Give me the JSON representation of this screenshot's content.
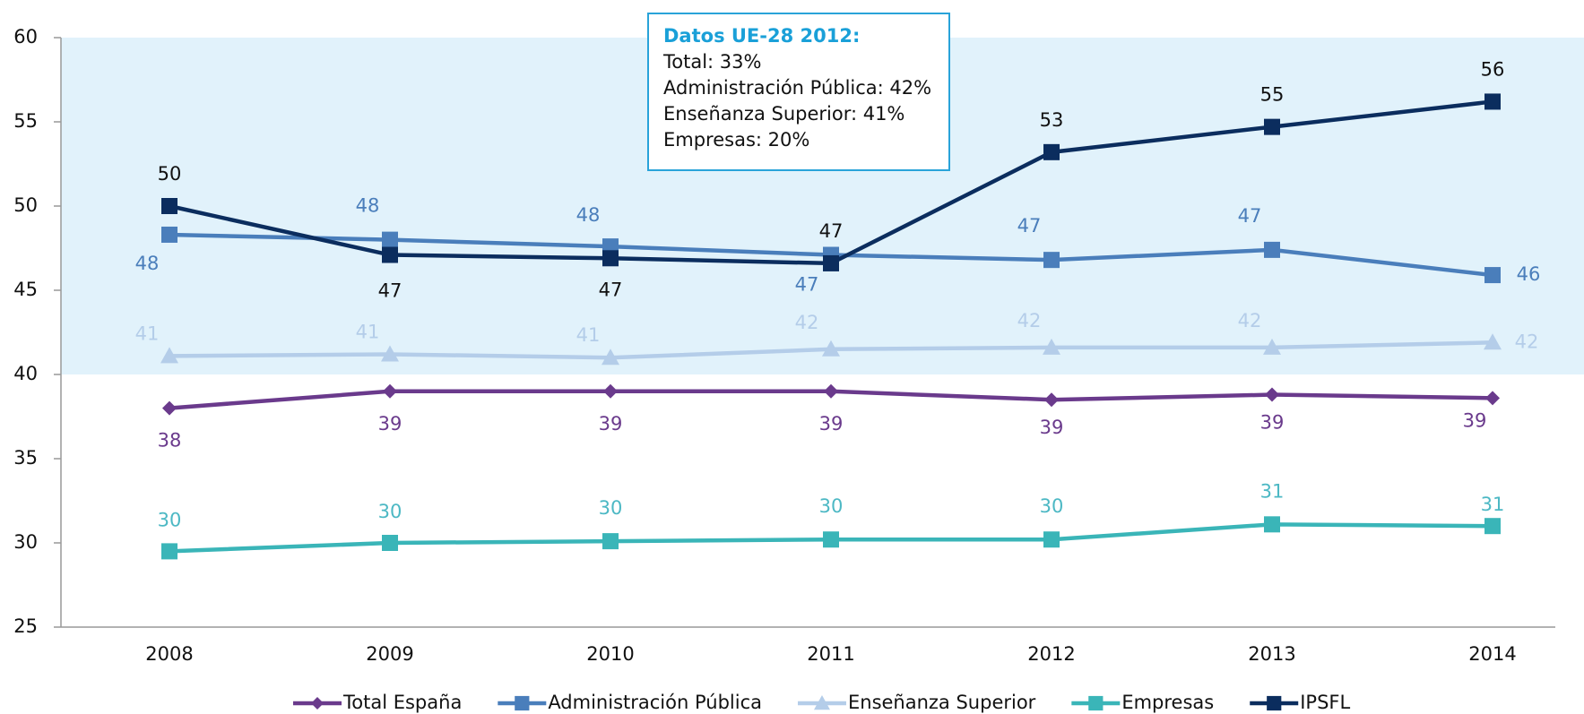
{
  "chart_data": {
    "type": "line",
    "categories": [
      "2008",
      "2009",
      "2010",
      "2011",
      "2012",
      "2013",
      "2014"
    ],
    "ylim": [
      25,
      60
    ],
    "yticks": [
      25,
      30,
      35,
      40,
      45,
      50,
      55,
      60
    ],
    "band": {
      "from": 40,
      "to": 60,
      "color": "#e1f2fb"
    },
    "legend": "bottom",
    "series": [
      {
        "name": "Total España",
        "color": "#6a3a8c",
        "marker": "diamond",
        "values": [
          38.0,
          39.0,
          39.0,
          39.0,
          38.5,
          38.8,
          38.6
        ],
        "value_labels": [
          "38",
          "39",
          "39",
          "39",
          "39",
          "39",
          "39"
        ]
      },
      {
        "name": "Administración Pública",
        "color": "#4a7ebb",
        "marker": "square",
        "values": [
          48.3,
          48.0,
          47.6,
          47.1,
          46.8,
          47.4,
          45.9
        ],
        "value_labels": [
          "48",
          "48",
          "48",
          "47",
          "47",
          "47",
          "46"
        ]
      },
      {
        "name": "Enseñanza Superior",
        "color": "#b4cde9",
        "marker": "triangle",
        "values": [
          41.1,
          41.2,
          41.0,
          41.5,
          41.6,
          41.6,
          41.9
        ],
        "value_labels": [
          "41",
          "41",
          "41",
          "42",
          "42",
          "42",
          "42"
        ]
      },
      {
        "name": "Empresas",
        "color": "#3ab5b8",
        "marker": "square",
        "values": [
          29.5,
          30.0,
          30.1,
          30.2,
          30.2,
          31.1,
          31.0
        ],
        "value_labels": [
          "30",
          "30",
          "30",
          "30",
          "30",
          "31",
          "31"
        ]
      },
      {
        "name": "IPSFL",
        "color": "#0b2d5e",
        "marker": "square",
        "values": [
          50.0,
          47.1,
          46.9,
          46.6,
          53.2,
          54.7,
          56.2
        ],
        "value_labels": [
          "50",
          "47",
          "47",
          "47",
          "53",
          "55",
          "56"
        ]
      }
    ],
    "annotation": {
      "title": "Datos UE-28 2012:",
      "lines": [
        "Total: 33%",
        "Administración Pública: 42%",
        "Enseñanza Superior: 41%",
        "Empresas: 20%"
      ]
    }
  }
}
